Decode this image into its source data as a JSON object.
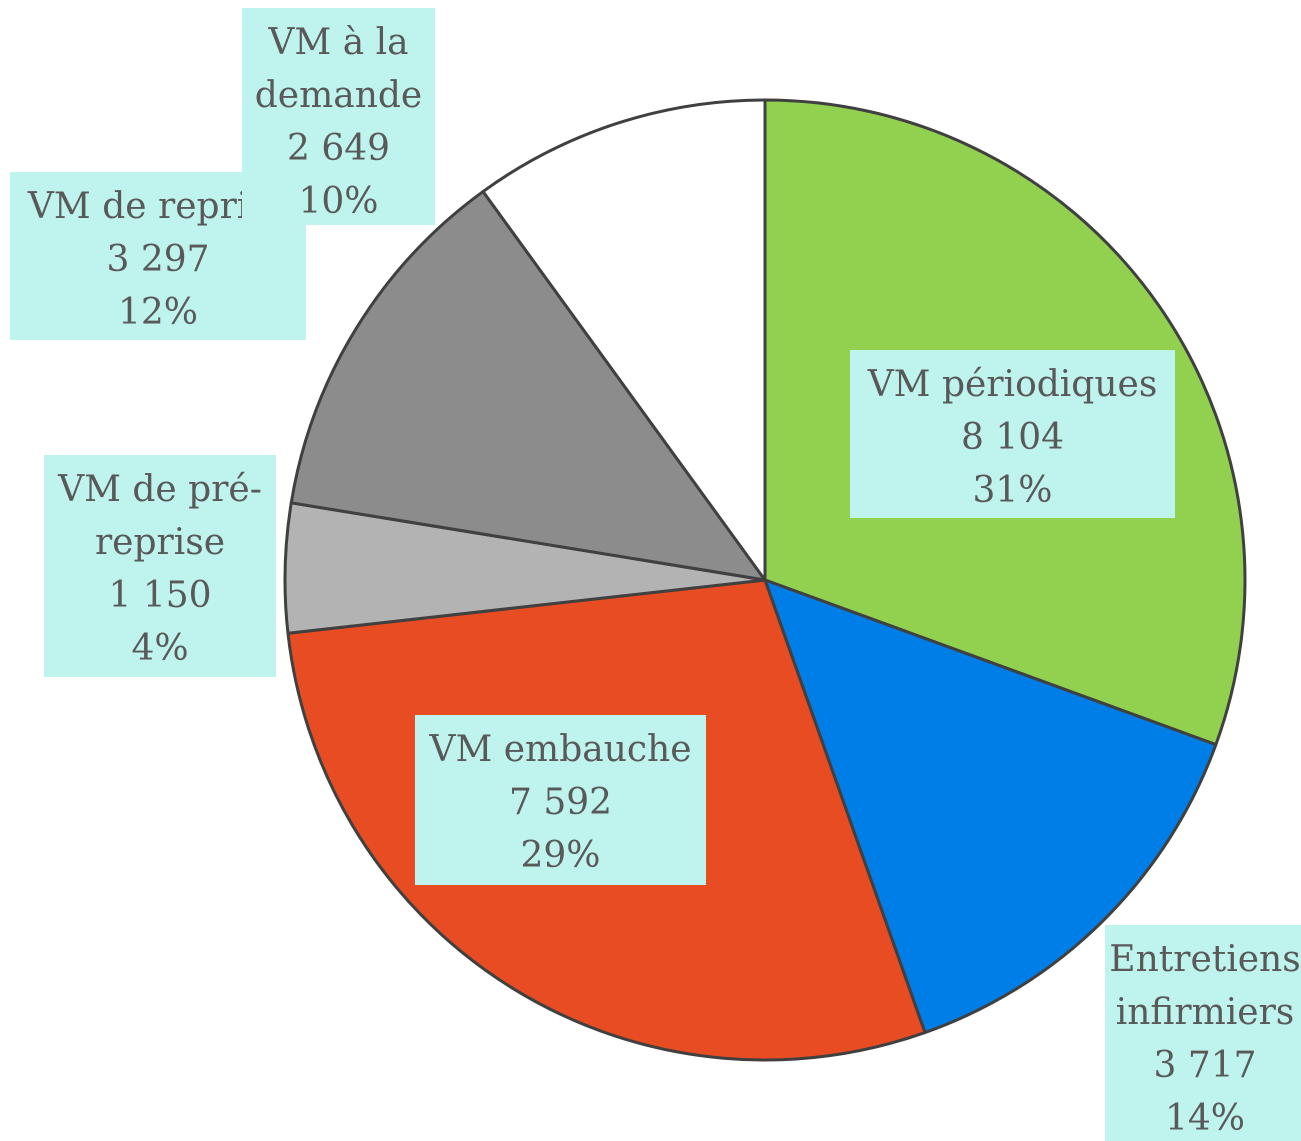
{
  "chart_data": {
    "type": "pie",
    "categories": [
      "VM périodiques",
      "Entretiens infirmiers",
      "VM embauche",
      "VM de pré-reprise",
      "VM de reprise",
      "VM à la demande"
    ],
    "values": [
      8104,
      3717,
      7592,
      1150,
      3297,
      2649
    ],
    "value_labels": [
      "8 104",
      "3 717",
      "7 592",
      "1 150",
      "3 297",
      "2 649"
    ],
    "percent_labels": [
      "31%",
      "14%",
      "29%",
      "4%",
      "12%",
      "10%"
    ],
    "colors": [
      "#92d050",
      "#007ee8",
      "#e84c22",
      "#b3b3b3",
      "#8c8c8c",
      "#ffffff"
    ]
  }
}
